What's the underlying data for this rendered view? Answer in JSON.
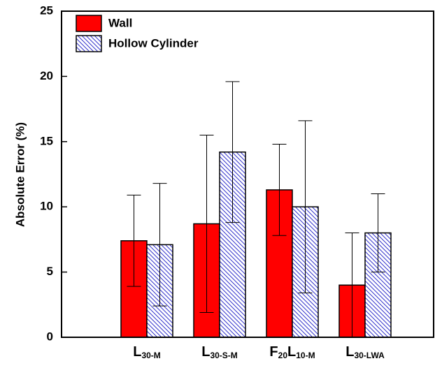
{
  "chart_data": {
    "type": "bar",
    "y_label": "Absolute Error (%)",
    "categories": [
      [
        "L",
        "30-M"
      ],
      [
        "L",
        "30-S-M"
      ],
      [
        "F",
        "20",
        "L",
        "10-M"
      ],
      [
        "L",
        "30-LWA"
      ]
    ],
    "series": [
      {
        "name": "Wall",
        "color": "#ff0000",
        "pattern": "solid",
        "values": [
          7.4,
          8.7,
          11.3,
          4.0
        ],
        "errors": [
          3.5,
          6.8,
          3.5,
          4.0
        ]
      },
      {
        "name": "Hollow Cylinder",
        "color": "#3333cc",
        "pattern": "hatch",
        "values": [
          7.1,
          14.2,
          10.0,
          8.0
        ],
        "errors": [
          4.7,
          5.4,
          6.6,
          3.0
        ]
      }
    ],
    "ylim": [
      0,
      25
    ],
    "yticks": [
      0,
      5,
      10,
      15,
      20,
      25
    ],
    "legend": "upper left"
  }
}
